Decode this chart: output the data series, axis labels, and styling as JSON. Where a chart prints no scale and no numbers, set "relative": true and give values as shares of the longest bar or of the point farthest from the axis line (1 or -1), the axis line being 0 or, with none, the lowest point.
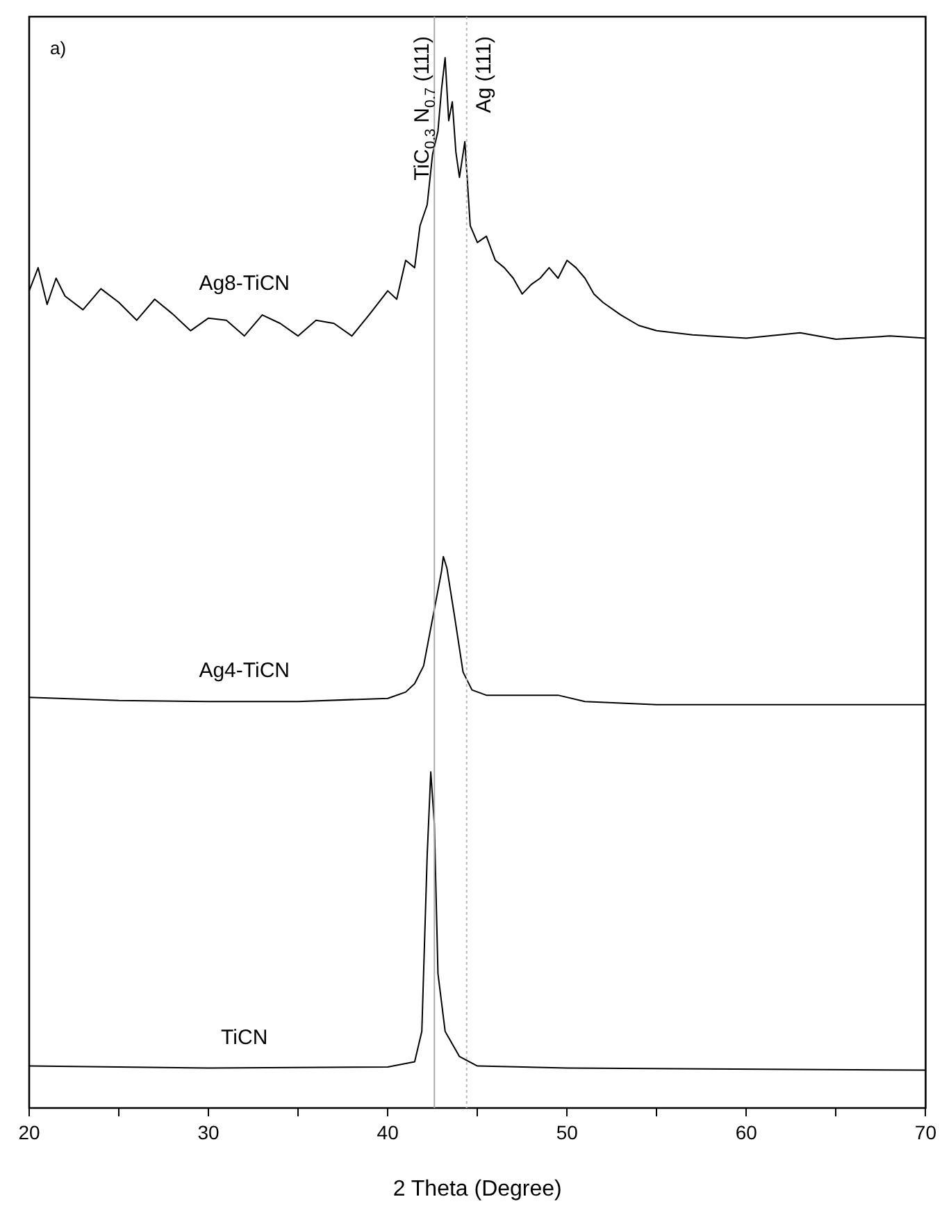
{
  "chart_data": {
    "type": "line",
    "relative": true,
    "xlabel": "2 Theta (Degree)",
    "annotations": [
      "a)"
    ],
    "xlim": [
      20,
      70
    ],
    "xticks": [
      20,
      {
        "value": 25,
        "label": null
      },
      30,
      {
        "value": 35,
        "label": null
      },
      40,
      {
        "value": 45,
        "label": null
      },
      50,
      {
        "value": 55,
        "label": null
      },
      60,
      {
        "value": 65,
        "label": null
      },
      70
    ],
    "grid": false,
    "legend": false,
    "marker": "none",
    "line_style": "solid",
    "ref_lines": [
      {
        "axis": "x",
        "value": 42.6,
        "label": "TiC$_{0.3}$ N$_{0.7}$ (111)",
        "color": "#aaaaaa",
        "line_style": "solid"
      },
      {
        "axis": "x",
        "value": 44.4,
        "label": "Ag (111)",
        "color": "#bbbbbb",
        "line_style": "dotted"
      }
    ],
    "series": [
      {
        "name": "Ag8-TiCN",
        "color": "#000000",
        "x": [
          20,
          20.5,
          21,
          21.5,
          22,
          23,
          24,
          25,
          26,
          27,
          28,
          29,
          30,
          31,
          32,
          33,
          34,
          35,
          36,
          37,
          38,
          39,
          40,
          40.5,
          41,
          41.5,
          41.8,
          42.2,
          42.5,
          42.8,
          43,
          43.2,
          43.4,
          43.6,
          43.8,
          44,
          44.3,
          44.6,
          45,
          45.5,
          46,
          46.5,
          47,
          47.5,
          48,
          48.5,
          49,
          49.5,
          50,
          50.5,
          51,
          51.5,
          52,
          53,
          54,
          55,
          57,
          60,
          63,
          65,
          68,
          70
        ],
        "values": [
          0.778,
          0.8,
          0.765,
          0.79,
          0.773,
          0.76,
          0.78,
          0.767,
          0.75,
          0.77,
          0.756,
          0.74,
          0.752,
          0.75,
          0.735,
          0.755,
          0.747,
          0.735,
          0.75,
          0.747,
          0.735,
          0.756,
          0.778,
          0.77,
          0.807,
          0.8,
          0.84,
          0.86,
          0.908,
          0.93,
          0.97,
          1.0,
          0.94,
          0.958,
          0.91,
          0.886,
          0.92,
          0.84,
          0.824,
          0.83,
          0.807,
          0.8,
          0.79,
          0.775,
          0.784,
          0.79,
          0.8,
          0.79,
          0.807,
          0.8,
          0.79,
          0.775,
          0.767,
          0.755,
          0.745,
          0.74,
          0.736,
          0.733,
          0.738,
          0.732,
          0.735,
          0.733
        ]
      },
      {
        "name": "Ag4-TiCN",
        "color": "#000000",
        "x": [
          20,
          25,
          30,
          35,
          40,
          41,
          41.5,
          42,
          42.5,
          43,
          43.1,
          43.3,
          43.7,
          44.2,
          44.7,
          45.5,
          48,
          49.5,
          51,
          55,
          70
        ],
        "values": [
          0.391,
          0.388,
          0.387,
          0.387,
          0.39,
          0.396,
          0.404,
          0.421,
          0.466,
          0.511,
          0.525,
          0.514,
          0.471,
          0.415,
          0.398,
          0.393,
          0.393,
          0.393,
          0.387,
          0.384,
          0.384
        ]
      },
      {
        "name": "TiCN",
        "color": "#000000",
        "x": [
          20,
          30,
          40,
          41.5,
          41.9,
          42.2,
          42.4,
          42.6,
          42.8,
          43.2,
          44,
          45,
          50,
          70
        ],
        "values": [
          0.04,
          0.038,
          0.039,
          0.044,
          0.073,
          0.241,
          0.32,
          0.27,
          0.128,
          0.073,
          0.049,
          0.04,
          0.038,
          0.036
        ]
      }
    ]
  }
}
